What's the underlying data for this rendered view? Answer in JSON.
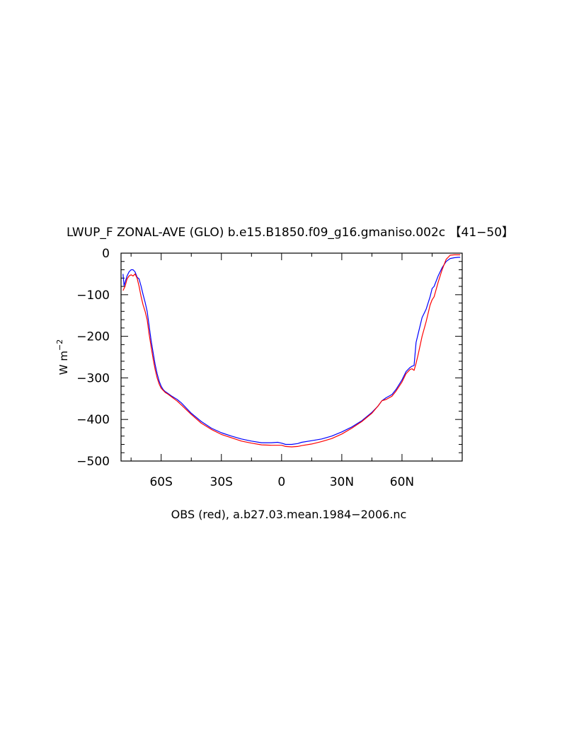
{
  "chart_data": {
    "type": "line",
    "title": "LWUP_F ZONAL-AVE (GLO) b.e15.B1850.f09_g16.gmaniso.002c 【41−50】",
    "xlabel": "OBS (red), a.b27.03.mean.1984−2006.nc",
    "ylabel_base": "W m",
    "ylabel_exp": "−2",
    "xlim": [
      -80,
      90
    ],
    "ylim": [
      -500,
      0
    ],
    "x_ticks": [
      {
        "value": -60,
        "label": "60S"
      },
      {
        "value": -30,
        "label": "30S"
      },
      {
        "value": 0,
        "label": "0"
      },
      {
        "value": 30,
        "label": "30N"
      },
      {
        "value": 60,
        "label": "60N"
      }
    ],
    "y_ticks": [
      {
        "value": 0,
        "label": "0"
      },
      {
        "value": -100,
        "label": "−100"
      },
      {
        "value": -200,
        "label": "−200"
      },
      {
        "value": -300,
        "label": "−300"
      },
      {
        "value": -400,
        "label": "−400"
      },
      {
        "value": -500,
        "label": "−500"
      }
    ],
    "series": [
      {
        "color": "#0000ff",
        "x": [
          -79,
          -78.5,
          -77,
          -76,
          -75,
          -74,
          -73,
          -72,
          -71,
          -70,
          -69,
          -68,
          -67,
          -66,
          -65,
          -64,
          -63,
          -62,
          -61,
          -60,
          -59,
          -58,
          -57,
          -55,
          -52,
          -50,
          -45,
          -40,
          -35,
          -30,
          -25,
          -20,
          -15,
          -10,
          -5,
          -2,
          0,
          2,
          5,
          8,
          10,
          15,
          20,
          25,
          30,
          35,
          40,
          45,
          48,
          50,
          52,
          55,
          57,
          60,
          62,
          64,
          65,
          66,
          67,
          68,
          70,
          72,
          74,
          75,
          76,
          78,
          80,
          82,
          84,
          86,
          88,
          89
        ],
        "y": [
          -50,
          -78,
          -55,
          -45,
          -40,
          -40,
          -45,
          -58,
          -62,
          -80,
          -100,
          -118,
          -140,
          -175,
          -210,
          -240,
          -268,
          -290,
          -308,
          -320,
          -328,
          -333,
          -336,
          -343,
          -352,
          -360,
          -385,
          -405,
          -421,
          -432,
          -440,
          -447,
          -452,
          -456,
          -456,
          -455,
          -457,
          -460,
          -460,
          -458,
          -455,
          -451,
          -447,
          -440,
          -430,
          -418,
          -403,
          -383,
          -368,
          -355,
          -348,
          -340,
          -328,
          -305,
          -285,
          -275,
          -272,
          -270,
          -215,
          -195,
          -155,
          -135,
          -105,
          -85,
          -80,
          -55,
          -35,
          -20,
          -13,
          -11,
          -10,
          -10
        ]
      },
      {
        "color": "#ff0000",
        "x": [
          -79,
          -78,
          -77,
          -76,
          -75,
          -74,
          -73,
          -72,
          -71,
          -70,
          -69,
          -68,
          -67,
          -66,
          -65,
          -64,
          -63,
          -62,
          -61,
          -60,
          -59,
          -58,
          -57,
          -55,
          -52,
          -50,
          -45,
          -40,
          -35,
          -30,
          -25,
          -20,
          -15,
          -10,
          -5,
          0,
          2,
          5,
          8,
          10,
          15,
          20,
          25,
          30,
          35,
          40,
          45,
          48,
          50,
          52,
          55,
          57,
          60,
          62,
          64,
          65,
          66,
          67,
          68,
          70,
          72,
          74,
          75,
          76,
          78,
          80,
          82,
          84,
          86,
          88,
          89
        ],
        "y": [
          -90,
          -80,
          -62,
          -55,
          -52,
          -55,
          -50,
          -60,
          -80,
          -105,
          -125,
          -140,
          -160,
          -195,
          -225,
          -255,
          -280,
          -300,
          -315,
          -325,
          -330,
          -335,
          -338,
          -345,
          -356,
          -365,
          -388,
          -409,
          -424,
          -436,
          -444,
          -452,
          -457,
          -461,
          -462,
          -462,
          -465,
          -466,
          -465,
          -463,
          -459,
          -453,
          -446,
          -435,
          -421,
          -405,
          -385,
          -368,
          -355,
          -352,
          -344,
          -332,
          -310,
          -290,
          -280,
          -278,
          -282,
          -265,
          -245,
          -200,
          -165,
          -125,
          -112,
          -105,
          -70,
          -40,
          -15,
          -5,
          -4,
          -4,
          -4
        ]
      }
    ]
  }
}
